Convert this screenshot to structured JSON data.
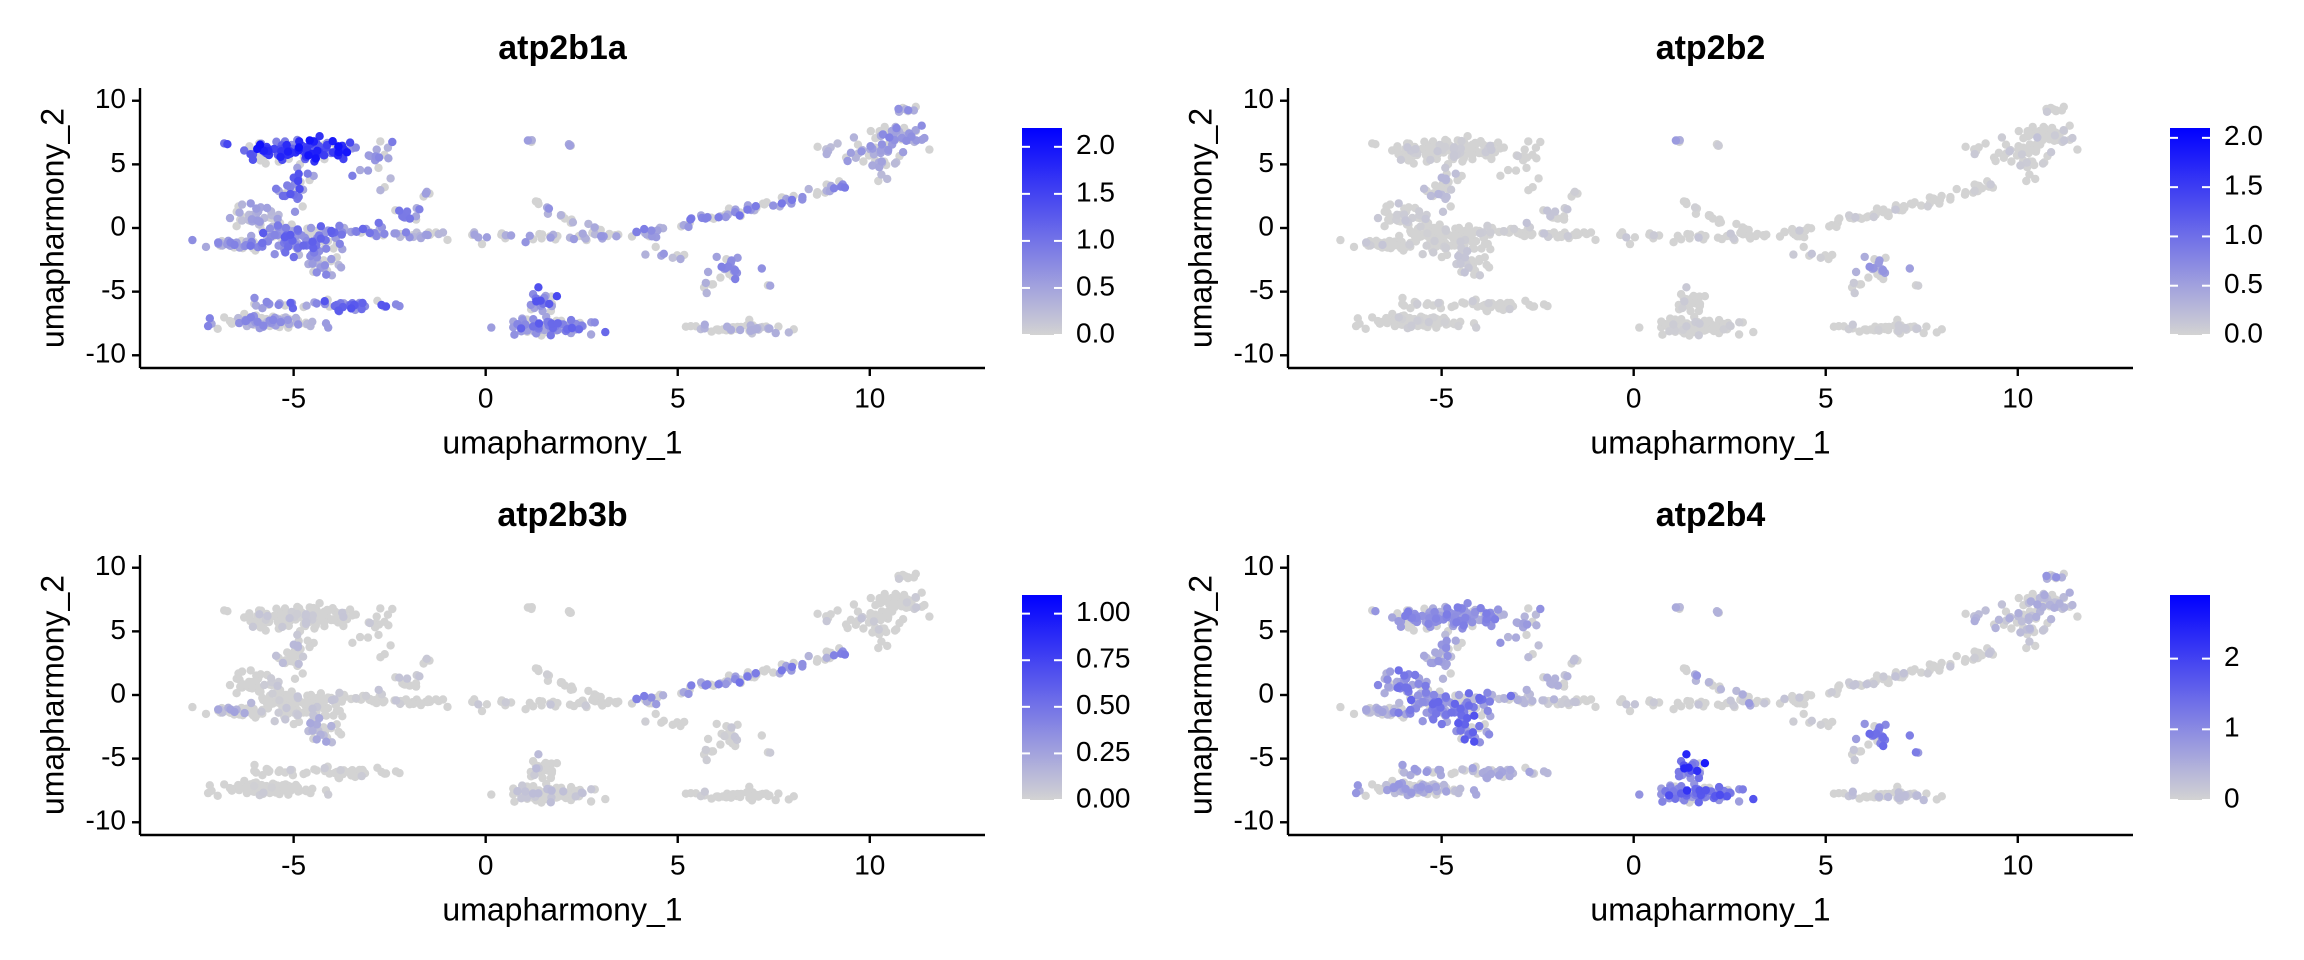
{
  "colors": {
    "low": "#d3d3d3",
    "high": "#0000ff",
    "axis": "#000000"
  },
  "chart_data": [
    {
      "type": "scatter",
      "title": "atp2b1a",
      "xlabel": "umapharmony_1",
      "ylabel": "umapharmony_2",
      "xlim": [
        -9,
        13
      ],
      "ylim": [
        -11,
        11
      ],
      "xticks": [
        -5,
        0,
        5,
        10
      ],
      "yticks": [
        -10,
        -5,
        0,
        5,
        10
      ],
      "xtick_labels": [
        "-5",
        "0",
        "5",
        "10"
      ],
      "ytick_labels": [
        "-10",
        "-5",
        "0",
        "5",
        "10"
      ],
      "legend": {
        "placement": "right",
        "min": 0,
        "max": 2.2,
        "ticks": [
          0,
          0.5,
          1,
          1.5,
          2
        ],
        "labels": [
          "0.0",
          "0.5",
          "1.0",
          "1.5",
          "2.0"
        ]
      },
      "expression": {
        "c0": 1.2,
        "c1": 0.55,
        "c2": 0.9,
        "c3": 0.35,
        "c4": 0.5,
        "c5": 0.75,
        "c6": 0.5,
        "c7": 0.6,
        "c8": 0.6,
        "c9": 0.4,
        "c10": 0.5,
        "c11": 0.8,
        "c12": 0.5,
        "c13": 0.4,
        "c14": 0.4,
        "c15": 0.45,
        "c16": 0.5,
        "c17": 0.7,
        "c18": 0.85,
        "c19": 0.6,
        "c20": 0.4,
        "c21": 0.3,
        "c22": 0.25,
        "c23": 0.4,
        "c24": 0.5,
        "c25": 0.6,
        "c26": 0.5,
        "c27": 0.45,
        "c28": 0.3
      }
    },
    {
      "type": "scatter",
      "title": "atp2b2",
      "xlabel": "umapharmony_1",
      "ylabel": "umapharmony_2",
      "xlim": [
        -9,
        13
      ],
      "ylim": [
        -11,
        11
      ],
      "xticks": [
        -5,
        0,
        5,
        10
      ],
      "yticks": [
        -10,
        -5,
        0,
        5,
        10
      ],
      "xtick_labels": [
        "-5",
        "0",
        "5",
        "10"
      ],
      "ytick_labels": [
        "-10",
        "-5",
        "0",
        "5",
        "10"
      ],
      "legend": {
        "placement": "right",
        "min": 0,
        "max": 2.1,
        "ticks": [
          0,
          0.5,
          1,
          1.5,
          2
        ],
        "labels": [
          "0.0",
          "0.5",
          "1.0",
          "1.5",
          "2.0"
        ]
      },
      "expression": {
        "c0": 0.08,
        "c1": 0.06,
        "c2": 0.2,
        "c3": 0.08,
        "c4": 0.08,
        "c5": 0.05,
        "c6": 0.1,
        "c7": 0.05,
        "c8": 0.1,
        "c9": 0.05,
        "c10": 0.05,
        "c11": 0.05,
        "c12": 0.05,
        "c13": 0.1,
        "c14": 0.4,
        "c15": 0.1,
        "c16": 0.05,
        "c17": 0.06,
        "c18": 0.06,
        "c19": 0.08,
        "c20": 0.1,
        "c21": 0.08,
        "c22": 0.06,
        "c23": 0.08,
        "c24": 0.1,
        "c25": 0.45,
        "c26": 0.05,
        "c27": 0.1,
        "c28": 0.08
      }
    },
    {
      "type": "scatter",
      "title": "atp2b3b",
      "xlabel": "umapharmony_1",
      "ylabel": "umapharmony_2",
      "xlim": [
        -9,
        13
      ],
      "ylim": [
        -11,
        11
      ],
      "xticks": [
        -5,
        0,
        5,
        10
      ],
      "yticks": [
        -10,
        -5,
        0,
        5,
        10
      ],
      "xtick_labels": [
        "-5",
        "0",
        "5",
        "10"
      ],
      "ytick_labels": [
        "-10",
        "-5",
        "0",
        "5",
        "10"
      ],
      "legend": {
        "placement": "right",
        "min": 0,
        "max": 1.1,
        "ticks": [
          0,
          0.25,
          0.5,
          0.75,
          1
        ],
        "labels": [
          "0.00",
          "0.25",
          "0.50",
          "0.75",
          "1.00"
        ]
      },
      "expression": {
        "c0": 0.05,
        "c1": 0.06,
        "c2": 0.1,
        "c3": 0.05,
        "c4": 0.15,
        "c5": 0.05,
        "c6": 0.15,
        "c7": 0.03,
        "c8": 0.05,
        "c9": 0.05,
        "c10": 0.03,
        "c11": 0.03,
        "c12": 0.03,
        "c13": 0.05,
        "c14": 0.03,
        "c15": 0.03,
        "c16": 0.03,
        "c17": 0.08,
        "c18": 0.08,
        "c19": 0.3,
        "c20": 0.03,
        "c21": 0.03,
        "c22": 0.03,
        "c23": 0.05,
        "c24": 0.05,
        "c25": 0.05,
        "c26": 0.05,
        "c27": 0.05,
        "c28": 0.05
      }
    },
    {
      "type": "scatter",
      "title": "atp2b4",
      "xlabel": "umapharmony_1",
      "ylabel": "umapharmony_2",
      "xlim": [
        -9,
        13
      ],
      "ylim": [
        -11,
        11
      ],
      "xticks": [
        -5,
        0,
        5,
        10
      ],
      "yticks": [
        -10,
        -5,
        0,
        5,
        10
      ],
      "xtick_labels": [
        "-5",
        "0",
        "5",
        "10"
      ],
      "ytick_labels": [
        "-10",
        "-5",
        "0",
        "5",
        "10"
      ],
      "legend": {
        "placement": "right",
        "min": 0,
        "max": 2.9,
        "ticks": [
          0,
          1,
          2
        ],
        "labels": [
          "0",
          "1",
          "2"
        ]
      },
      "expression": {
        "c0": 0.7,
        "c1": 0.55,
        "c2": 0.6,
        "c3": 0.8,
        "c4": 0.4,
        "c5": 0.9,
        "c6": 1.1,
        "c7": 0.3,
        "c8": 0.3,
        "c9": 0.2,
        "c10": 0.5,
        "c11": 0.4,
        "c12": 0.5,
        "c13": 0.15,
        "c14": 0.4,
        "c15": 0.4,
        "c16": 0.6,
        "c17": 1.1,
        "c18": 1.5,
        "c19": 0.15,
        "c20": 0.1,
        "c21": 0.15,
        "c22": 0.2,
        "c23": 0.3,
        "c24": 0.35,
        "c25": 1.0,
        "c26": 0.8,
        "c27": 0.55,
        "c28": 0.4
      }
    }
  ],
  "clusters": [
    {
      "id": "c0",
      "shape": "ellipse",
      "cx": -4.8,
      "cy": 6.1,
      "sx": 1.3,
      "sy": 0.8,
      "n": 160
    },
    {
      "id": "c1",
      "shape": "ellipse",
      "cx": -2.8,
      "cy": 4.8,
      "sx": 0.45,
      "sy": 1.4,
      "n": 18
    },
    {
      "id": "c2",
      "shape": "ellipse",
      "cx": -4.9,
      "cy": 3.2,
      "sx": 0.45,
      "sy": 1.5,
      "n": 30
    },
    {
      "id": "c3",
      "shape": "ellipse",
      "cx": -5.9,
      "cy": 1.0,
      "sx": 0.6,
      "sy": 0.8,
      "n": 40
    },
    {
      "id": "c4",
      "shape": "ellipse",
      "cx": -6.6,
      "cy": -1.3,
      "sx": 0.6,
      "sy": 0.4,
      "n": 30
    },
    {
      "id": "c5",
      "shape": "ellipse",
      "cx": -5.0,
      "cy": -0.8,
      "sx": 1.0,
      "sy": 0.9,
      "n": 110
    },
    {
      "id": "c6",
      "shape": "ellipse",
      "cx": -4.2,
      "cy": -2.5,
      "sx": 0.5,
      "sy": 1.0,
      "n": 30
    },
    {
      "id": "c7",
      "shape": "ellipse",
      "cx": -3.3,
      "cy": -0.3,
      "sx": 0.7,
      "sy": 0.4,
      "n": 25
    },
    {
      "id": "c8",
      "shape": "ellipse",
      "cx": -2.2,
      "cy": 0.8,
      "sx": 0.5,
      "sy": 0.8,
      "n": 15
    },
    {
      "id": "c9",
      "shape": "ellipse",
      "cx": -1.6,
      "cy": 2.6,
      "sx": 0.2,
      "sy": 0.3,
      "n": 4
    },
    {
      "id": "c10",
      "shape": "ellipse",
      "cx": -5.6,
      "cy": -7.4,
      "sx": 1.1,
      "sy": 0.45,
      "n": 90
    },
    {
      "id": "c11",
      "shape": "ellipse",
      "cx": -3.4,
      "cy": -6.1,
      "sx": 1.1,
      "sy": 0.35,
      "n": 45
    },
    {
      "id": "c12",
      "shape": "ellipse",
      "cx": -5.6,
      "cy": -5.9,
      "sx": 0.5,
      "sy": 0.3,
      "n": 12
    },
    {
      "id": "c13",
      "shape": "line",
      "x1": -2.4,
      "y1": -0.6,
      "x2": 3.8,
      "y2": -0.7,
      "spread": 0.2,
      "n": 55
    },
    {
      "id": "c14",
      "shape": "ellipse",
      "cx": 1.2,
      "cy": 6.9,
      "sx": 0.12,
      "sy": 0.1,
      "n": 4
    },
    {
      "id": "c15",
      "shape": "ellipse",
      "cx": 2.2,
      "cy": 6.5,
      "sx": 0.12,
      "sy": 0.12,
      "n": 4
    },
    {
      "id": "c16",
      "shape": "line",
      "x1": 1.3,
      "y1": 1.8,
      "x2": 3.1,
      "y2": -0.5,
      "spread": 0.25,
      "n": 22
    },
    {
      "id": "c17",
      "shape": "ellipse",
      "cx": 1.7,
      "cy": -7.8,
      "sx": 1.1,
      "sy": 0.5,
      "n": 90
    },
    {
      "id": "c18",
      "shape": "ellipse",
      "cx": 1.5,
      "cy": -6.0,
      "sx": 0.35,
      "sy": 0.9,
      "n": 25
    },
    {
      "id": "c19",
      "shape": "line",
      "x1": 3.8,
      "y1": -0.6,
      "x2": 9.3,
      "y2": 3.2,
      "spread": 0.2,
      "n": 80
    },
    {
      "id": "c20",
      "shape": "ellipse",
      "cx": 4.8,
      "cy": -2.0,
      "sx": 0.4,
      "sy": 0.5,
      "n": 8
    },
    {
      "id": "c21",
      "shape": "ellipse",
      "cx": 5.8,
      "cy": -4.5,
      "sx": 0.15,
      "sy": 0.5,
      "n": 6
    },
    {
      "id": "c22",
      "shape": "ellipse",
      "cx": 6.6,
      "cy": -7.9,
      "sx": 0.9,
      "sy": 0.3,
      "n": 50
    },
    {
      "id": "c23",
      "shape": "ellipse",
      "cx": 10.2,
      "cy": 5.5,
      "sx": 0.6,
      "sy": 1.3,
      "n": 40
    },
    {
      "id": "c24",
      "shape": "ellipse",
      "cx": 10.8,
      "cy": 7.3,
      "sx": 0.6,
      "sy": 0.8,
      "n": 45
    },
    {
      "id": "c25",
      "shape": "ellipse",
      "cx": 6.4,
      "cy": -3.3,
      "sx": 0.35,
      "sy": 0.9,
      "n": 22
    },
    {
      "id": "c26",
      "shape": "ellipse",
      "cx": 7.4,
      "cy": -4.6,
      "sx": 0.1,
      "sy": 0.2,
      "n": 2
    },
    {
      "id": "c27",
      "shape": "ellipse",
      "cx": 11.0,
      "cy": 9.2,
      "sx": 0.3,
      "sy": 0.4,
      "n": 8
    },
    {
      "id": "c28",
      "shape": "ellipse",
      "cx": 8.9,
      "cy": 6.2,
      "sx": 0.3,
      "sy": 0.3,
      "n": 6
    }
  ]
}
